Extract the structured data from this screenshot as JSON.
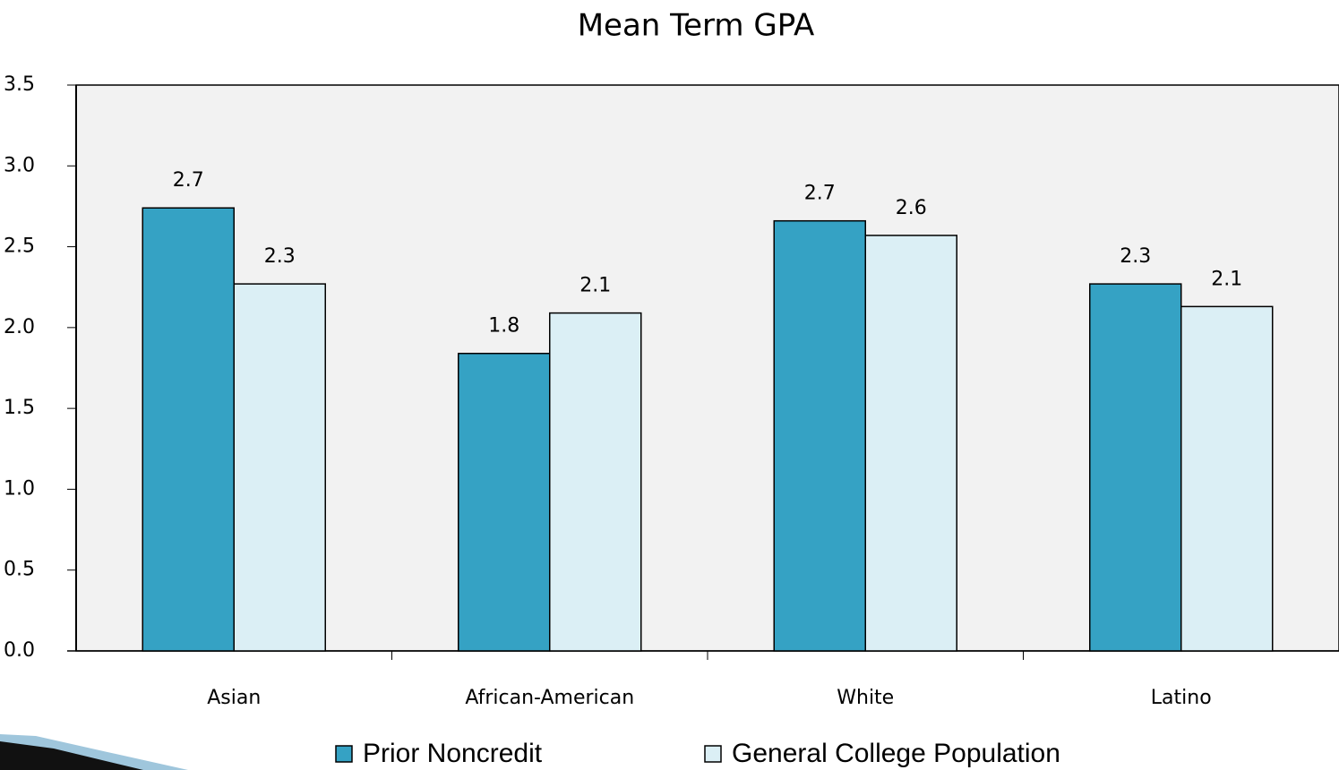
{
  "chart_data": {
    "type": "bar",
    "title": "Mean Term GPA",
    "categories": [
      "Asian",
      "African-American",
      "White",
      "Latino"
    ],
    "series": [
      {
        "name": "Prior Noncredit",
        "color": "#35a2c4",
        "values": [
          2.74,
          1.84,
          2.66,
          2.27
        ],
        "value_labels": [
          "2.7",
          "1.8",
          "2.7",
          "2.3"
        ]
      },
      {
        "name": "General College Population",
        "color": "#dbeff5",
        "values": [
          2.27,
          2.09,
          2.57,
          2.13
        ],
        "value_labels": [
          "2.3",
          "2.1",
          "2.6",
          "2.1"
        ]
      }
    ],
    "ylim": [
      0,
      3.5
    ],
    "yticks": [
      {
        "value": 0,
        "label": "0.0"
      },
      0.5,
      {
        "value": 1,
        "label": "1.0"
      },
      1.5,
      {
        "value": 2,
        "label": "2.0"
      },
      2.5,
      {
        "value": 3,
        "label": "3.0"
      },
      3.5
    ],
    "legend": "bottom"
  }
}
